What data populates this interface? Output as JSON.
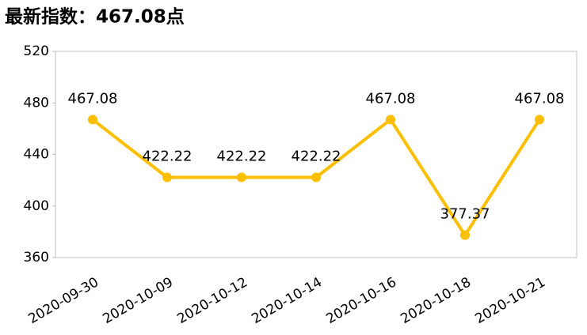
{
  "chart_data": {
    "type": "line",
    "title": "最新指数：467.08点",
    "categories": [
      "2020-09-30",
      "2020-10-09",
      "2020-10-12",
      "2020-10-14",
      "2020-10-16",
      "2020-10-18",
      "2020-10-21"
    ],
    "series": [
      {
        "color": "#fcbf00",
        "values": [
          467.08,
          422.22,
          422.22,
          422.22,
          467.08,
          377.37,
          467.08
        ]
      }
    ],
    "ylim": [
      360,
      520
    ],
    "yticks": [
      360,
      400,
      440,
      480,
      520
    ],
    "grid": false
  }
}
